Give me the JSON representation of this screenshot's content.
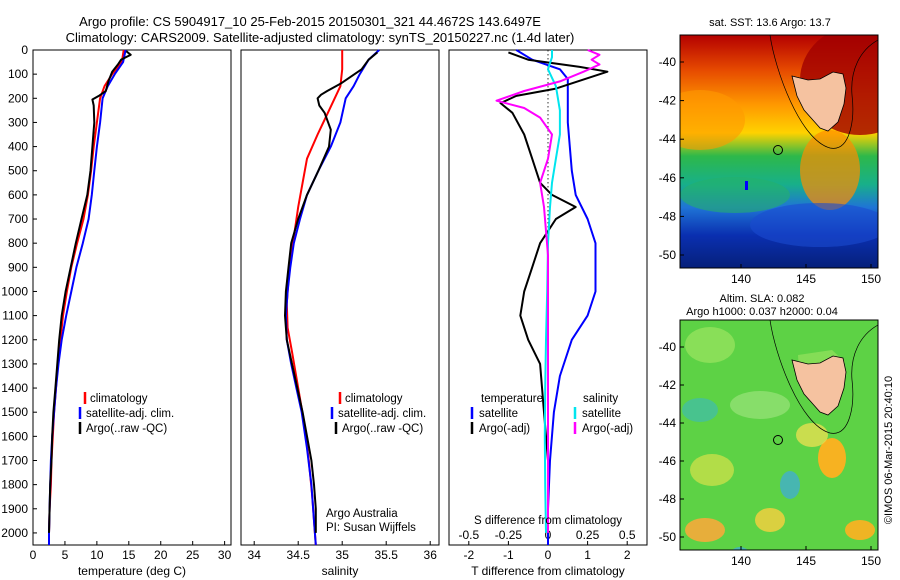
{
  "header": {
    "title_line1": "Argo profile: CS 5904917_10 25-Feb-2015 20150301_321 44.4672S 143.6497E",
    "title_line2": "Climatology: CARS2009. Satellite-adjusted climatology: synTS_20150227.nc (1.4d later)"
  },
  "colors": {
    "climatology": "#ff0000",
    "satellite": "#0000ff",
    "argo_temp": "#000000",
    "sat_salinity": "#00e5ee",
    "argo_salinity": "#ff00ff"
  },
  "legend_temp_panel": {
    "items": [
      "climatology",
      "satellite-adj. clim.",
      "Argo(..raw -QC)"
    ]
  },
  "legend_sal_panel": {
    "items": [
      "climatology",
      "satellite-adj. clim.",
      "Argo(..raw -QC)"
    ]
  },
  "legend_diff_panel": {
    "temperature_heading": "temperature",
    "salinity_heading": "salinity",
    "temp_items": [
      "satellite",
      "Argo(-adj)"
    ],
    "sal_items": [
      "satellite",
      "Argo(-adj)"
    ]
  },
  "credit": {
    "line1": "Argo Australia",
    "line2": "PI: Susan Wijffels"
  },
  "sst_map": {
    "title": "sat. SST: 13.6 Argo: 13.7",
    "lat_ticks": [
      "-40",
      "-42",
      "-44",
      "-46",
      "-48",
      "-50"
    ],
    "lon_ticks": [
      "140",
      "145",
      "150"
    ]
  },
  "sla_map": {
    "title_line1": "Altim. SLA: 0.082",
    "title_line2": "Argo h1000: 0.037 h2000: 0.04",
    "lat_ticks": [
      "-40",
      "-42",
      "-44",
      "-46",
      "-48",
      "-50"
    ],
    "lon_ticks": [
      "140",
      "145",
      "150"
    ]
  },
  "watermark": "©IMOS 06-Mar-2015 20:40:10",
  "chart_data": [
    {
      "type": "line",
      "name": "temperature",
      "xlabel": "temperature (deg C)",
      "ylabel": "",
      "xlim": [
        0,
        31
      ],
      "ylim": [
        0,
        2050
      ],
      "y_reversed": true,
      "xticks": [
        0,
        5,
        10,
        15,
        20,
        25,
        30
      ],
      "yticks": [
        0,
        100,
        200,
        300,
        400,
        500,
        600,
        700,
        800,
        900,
        1000,
        1100,
        1200,
        1300,
        1400,
        1500,
        1600,
        1700,
        1800,
        1900,
        2000
      ],
      "series": [
        {
          "name": "climatology",
          "color": "#ff0000",
          "points": [
            [
              14.2,
              0
            ],
            [
              13.9,
              50
            ],
            [
              12.4,
              100
            ],
            [
              11.2,
              150
            ],
            [
              10.5,
              200
            ],
            [
              10.0,
              300
            ],
            [
              9.5,
              400
            ],
            [
              9.1,
              500
            ],
            [
              8.6,
              600
            ],
            [
              7.9,
              700
            ],
            [
              6.9,
              800
            ],
            [
              6.0,
              900
            ],
            [
              5.3,
              1000
            ],
            [
              4.7,
              1100
            ],
            [
              4.3,
              1200
            ],
            [
              3.9,
              1300
            ],
            [
              3.6,
              1400
            ],
            [
              3.3,
              1500
            ],
            [
              3.1,
              1600
            ],
            [
              2.9,
              1700
            ],
            [
              2.8,
              1800
            ],
            [
              2.6,
              1900
            ],
            [
              2.5,
              2000
            ],
            [
              2.5,
              2050
            ]
          ]
        },
        {
          "name": "satellite-adj. clim.",
          "color": "#0000ff",
          "points": [
            [
              14.5,
              0
            ],
            [
              14.1,
              50
            ],
            [
              12.8,
              100
            ],
            [
              11.7,
              150
            ],
            [
              10.9,
              200
            ],
            [
              10.5,
              300
            ],
            [
              10.0,
              400
            ],
            [
              9.6,
              500
            ],
            [
              9.2,
              600
            ],
            [
              8.7,
              700
            ],
            [
              7.8,
              800
            ],
            [
              6.8,
              900
            ],
            [
              6.0,
              1000
            ],
            [
              5.2,
              1100
            ],
            [
              4.5,
              1200
            ],
            [
              4.0,
              1300
            ],
            [
              3.6,
              1400
            ],
            [
              3.3,
              1500
            ],
            [
              3.0,
              1600
            ],
            [
              2.8,
              1700
            ],
            [
              2.7,
              1800
            ],
            [
              2.6,
              1900
            ],
            [
              2.5,
              2000
            ],
            [
              2.5,
              2050
            ]
          ]
        },
        {
          "name": "Argo(..raw -QC)",
          "color": "#000000",
          "points": [
            [
              14.6,
              5
            ],
            [
              15.3,
              20
            ],
            [
              13.8,
              40
            ],
            [
              13.3,
              60
            ],
            [
              12.4,
              90
            ],
            [
              11.8,
              130
            ],
            [
              11.4,
              170
            ],
            [
              10.3,
              190
            ],
            [
              9.3,
              205
            ],
            [
              9.5,
              230
            ],
            [
              9.6,
              300
            ],
            [
              9.3,
              400
            ],
            [
              9.0,
              500
            ],
            [
              8.5,
              600
            ],
            [
              7.6,
              700
            ],
            [
              6.7,
              800
            ],
            [
              5.9,
              900
            ],
            [
              5.1,
              1000
            ],
            [
              4.5,
              1100
            ],
            [
              4.1,
              1200
            ],
            [
              3.8,
              1300
            ],
            [
              3.5,
              1400
            ],
            [
              3.2,
              1500
            ],
            [
              3.0,
              1600
            ],
            [
              2.9,
              1700
            ],
            [
              2.7,
              1800
            ],
            [
              2.6,
              1900
            ],
            [
              2.5,
              2000
            ]
          ]
        }
      ]
    },
    {
      "type": "line",
      "name": "salinity",
      "xlabel": "salinity",
      "ylabel": "",
      "xlim": [
        33.85,
        36.1
      ],
      "ylim": [
        0,
        2050
      ],
      "y_reversed": true,
      "xticks": [
        34,
        34.5,
        35,
        35.5,
        36
      ],
      "series": [
        {
          "name": "climatology",
          "color": "#ff0000",
          "points": [
            [
              35.0,
              0
            ],
            [
              35.0,
              80
            ],
            [
              34.98,
              150
            ],
            [
              34.85,
              250
            ],
            [
              34.72,
              350
            ],
            [
              34.6,
              450
            ],
            [
              34.55,
              550
            ],
            [
              34.5,
              650
            ],
            [
              34.46,
              750
            ],
            [
              34.42,
              850
            ],
            [
              34.39,
              950
            ],
            [
              34.37,
              1050
            ],
            [
              34.38,
              1150
            ],
            [
              34.43,
              1250
            ],
            [
              34.5,
              1400
            ],
            [
              34.57,
              1550
            ],
            [
              34.62,
              1700
            ],
            [
              34.66,
              1850
            ],
            [
              34.69,
              2000
            ],
            [
              34.7,
              2050
            ]
          ]
        },
        {
          "name": "satellite-adj. clim.",
          "color": "#0000ff",
          "points": [
            [
              35.42,
              0
            ],
            [
              35.3,
              40
            ],
            [
              35.2,
              100
            ],
            [
              35.13,
              150
            ],
            [
              35.04,
              200
            ],
            [
              34.98,
              300
            ],
            [
              34.87,
              400
            ],
            [
              34.73,
              500
            ],
            [
              34.6,
              600
            ],
            [
              34.52,
              700
            ],
            [
              34.45,
              800
            ],
            [
              34.41,
              900
            ],
            [
              34.38,
              1000
            ],
            [
              34.36,
              1100
            ],
            [
              34.37,
              1200
            ],
            [
              34.42,
              1300
            ],
            [
              34.48,
              1400
            ],
            [
              34.54,
              1500
            ],
            [
              34.6,
              1650
            ],
            [
              34.65,
              1800
            ],
            [
              34.68,
              1950
            ],
            [
              34.7,
              2050
            ]
          ]
        },
        {
          "name": "Argo(..raw -QC)",
          "color": "#000000",
          "points": [
            [
              35.4,
              10
            ],
            [
              35.3,
              40
            ],
            [
              35.22,
              80
            ],
            [
              35.1,
              110
            ],
            [
              34.98,
              140
            ],
            [
              34.83,
              170
            ],
            [
              34.76,
              185
            ],
            [
              34.72,
              200
            ],
            [
              34.74,
              230
            ],
            [
              34.8,
              260
            ],
            [
              34.87,
              330
            ],
            [
              34.85,
              400
            ],
            [
              34.73,
              500
            ],
            [
              34.6,
              600
            ],
            [
              34.5,
              700
            ],
            [
              34.42,
              800
            ],
            [
              34.39,
              900
            ],
            [
              34.36,
              1000
            ],
            [
              34.35,
              1100
            ],
            [
              34.37,
              1200
            ],
            [
              34.43,
              1300
            ],
            [
              34.49,
              1400
            ],
            [
              34.55,
              1500
            ],
            [
              34.6,
              1600
            ],
            [
              34.65,
              1700
            ],
            [
              34.68,
              1800
            ],
            [
              34.7,
              1900
            ],
            [
              34.7,
              2000
            ]
          ]
        }
      ]
    },
    {
      "type": "line",
      "name": "difference from climatology",
      "xlabel": "T difference from climatology",
      "xlabel2": "S difference from climatology",
      "xlim": [
        -2.5,
        2.5
      ],
      "ylim": [
        0,
        2050
      ],
      "y_reversed": true,
      "xticks_T": [
        -2,
        -1,
        0,
        1,
        2
      ],
      "xticks_S": [
        -0.5,
        -0.25,
        0,
        0.25,
        0.5
      ],
      "series": [
        {
          "name": "temperature satellite",
          "color": "#0000ff",
          "points": [
            [
              -0.8,
              0
            ],
            [
              -0.4,
              40
            ],
            [
              0.3,
              80
            ],
            [
              0.5,
              120
            ],
            [
              0.5,
              200
            ],
            [
              0.5,
              300
            ],
            [
              0.55,
              400
            ],
            [
              0.6,
              500
            ],
            [
              0.7,
              600
            ],
            [
              1.0,
              700
            ],
            [
              1.2,
              800
            ],
            [
              1.2,
              900
            ],
            [
              1.2,
              1000
            ],
            [
              1.0,
              1100
            ],
            [
              0.6,
              1200
            ],
            [
              0.3,
              1350
            ],
            [
              0.15,
              1500
            ],
            [
              0.05,
              1700
            ],
            [
              0,
              1900
            ],
            [
              0,
              2050
            ]
          ]
        },
        {
          "name": "temperature Argo(-adj)",
          "color": "#000000",
          "points": [
            [
              -1.0,
              10
            ],
            [
              -0.5,
              40
            ],
            [
              0.8,
              70
            ],
            [
              1.5,
              90
            ],
            [
              0.2,
              160
            ],
            [
              -0.8,
              190
            ],
            [
              -1.2,
              220
            ],
            [
              -0.9,
              260
            ],
            [
              -0.6,
              350
            ],
            [
              -0.4,
              450
            ],
            [
              -0.2,
              550
            ],
            [
              0.1,
              600
            ],
            [
              0.7,
              650
            ],
            [
              0.2,
              700
            ],
            [
              -0.2,
              800
            ],
            [
              -0.4,
              900
            ],
            [
              -0.6,
              1000
            ],
            [
              -0.7,
              1100
            ],
            [
              -0.5,
              1200
            ],
            [
              -0.2,
              1300
            ],
            [
              -0.1,
              1500
            ],
            [
              0,
              1700
            ],
            [
              0,
              1900
            ],
            [
              0,
              2000
            ]
          ]
        },
        {
          "name": "salinity satellite",
          "color": "#00e5ee",
          "points": [
            [
              0.1,
              0
            ],
            [
              0.1,
              30
            ],
            [
              0.0,
              80
            ],
            [
              0.2,
              150
            ],
            [
              0.3,
              250
            ],
            [
              0.3,
              350
            ],
            [
              0.2,
              450
            ],
            [
              0.1,
              550
            ],
            [
              0.05,
              650
            ],
            [
              0.0,
              800
            ],
            [
              -0.02,
              1000
            ],
            [
              -0.05,
              1200
            ],
            [
              -0.07,
              1400
            ],
            [
              -0.08,
              1600
            ],
            [
              -0.07,
              1800
            ],
            [
              -0.05,
              2000
            ]
          ]
        },
        {
          "name": "salinity Argo(-adj)",
          "color": "#ff00ff",
          "points": [
            [
              1.0,
              0
            ],
            [
              1.3,
              20
            ],
            [
              1.1,
              40
            ],
            [
              1.3,
              60
            ],
            [
              0.9,
              90
            ],
            [
              0.3,
              130
            ],
            [
              -0.6,
              170
            ],
            [
              -1.3,
              210
            ],
            [
              -0.6,
              240
            ],
            [
              -0.2,
              280
            ],
            [
              0.1,
              350
            ],
            [
              0.0,
              450
            ],
            [
              -0.2,
              550
            ],
            [
              -0.1,
              650
            ],
            [
              -0.05,
              750
            ],
            [
              0.0,
              850
            ],
            [
              0.0,
              1000
            ],
            [
              0.0,
              1200
            ],
            [
              0.0,
              1400
            ],
            [
              0.0,
              1600
            ],
            [
              0.0,
              1800
            ],
            [
              0.0,
              2000
            ]
          ]
        }
      ]
    }
  ]
}
